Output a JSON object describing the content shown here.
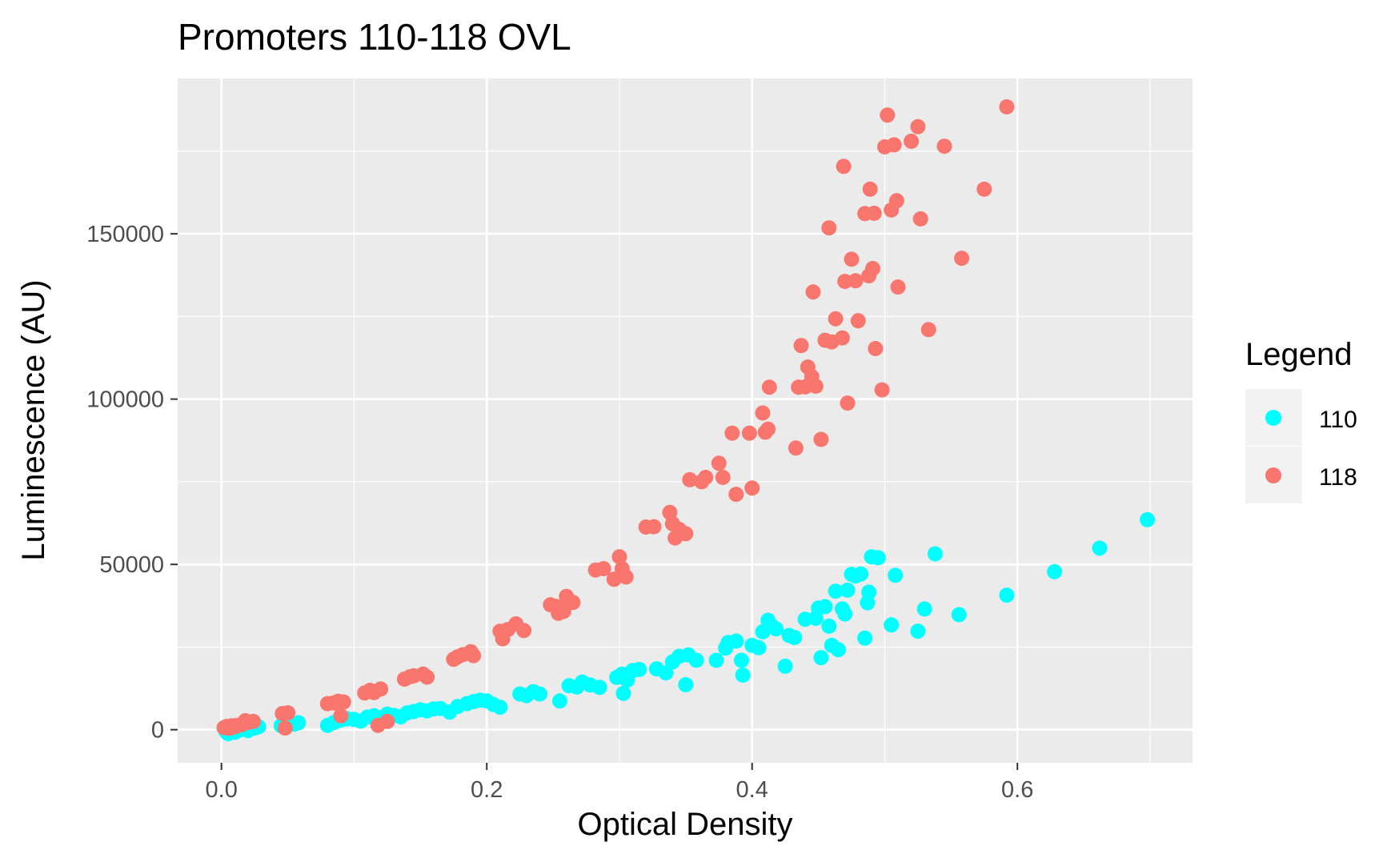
{
  "chart_data": {
    "type": "scatter",
    "title": "Promoters 110-118 OVL",
    "xlabel": "Optical Density",
    "ylabel": "Luminescence (AU)",
    "xlim": [
      -0.033,
      0.732
    ],
    "ylim": [
      -10000,
      197000
    ],
    "x_ticks": [
      0.0,
      0.2,
      0.4,
      0.6
    ],
    "x_tick_labels": [
      "0.0",
      "0.2",
      "0.4",
      "0.6"
    ],
    "y_ticks": [
      0,
      50000,
      100000,
      150000
    ],
    "y_tick_labels": [
      "0",
      "50000",
      "100000",
      "150000"
    ],
    "grid": true,
    "panel_background": "#ebebeb",
    "legend": {
      "title": "Legend",
      "placement": "right"
    },
    "series": [
      {
        "name": "110",
        "color": "#00ffff",
        "points": [
          [
            0.003,
            -200
          ],
          [
            0.004,
            -800
          ],
          [
            0.005,
            -1200
          ],
          [
            0.006,
            -600
          ],
          [
            0.008,
            0
          ],
          [
            0.01,
            -800
          ],
          [
            0.012,
            -400
          ],
          [
            0.018,
            100
          ],
          [
            0.02,
            -300
          ],
          [
            0.025,
            500
          ],
          [
            0.028,
            900
          ],
          [
            0.045,
            1200
          ],
          [
            0.055,
            1700
          ],
          [
            0.058,
            2100
          ],
          [
            0.08,
            1300
          ],
          [
            0.085,
            2200
          ],
          [
            0.09,
            2900
          ],
          [
            0.095,
            3300
          ],
          [
            0.1,
            3100
          ],
          [
            0.105,
            2600
          ],
          [
            0.11,
            3800
          ],
          [
            0.115,
            4200
          ],
          [
            0.12,
            3600
          ],
          [
            0.125,
            4700
          ],
          [
            0.13,
            4300
          ],
          [
            0.135,
            3900
          ],
          [
            0.14,
            5100
          ],
          [
            0.145,
            5500
          ],
          [
            0.15,
            6000
          ],
          [
            0.155,
            5700
          ],
          [
            0.16,
            6300
          ],
          [
            0.165,
            6400
          ],
          [
            0.172,
            5300
          ],
          [
            0.178,
            7000
          ],
          [
            0.185,
            7900
          ],
          [
            0.19,
            8500
          ],
          [
            0.195,
            8900
          ],
          [
            0.2,
            8700
          ],
          [
            0.205,
            7600
          ],
          [
            0.21,
            6800
          ],
          [
            0.225,
            10800
          ],
          [
            0.23,
            10300
          ],
          [
            0.235,
            11500
          ],
          [
            0.24,
            10800
          ],
          [
            0.255,
            8700
          ],
          [
            0.262,
            13300
          ],
          [
            0.268,
            12900
          ],
          [
            0.272,
            14400
          ],
          [
            0.278,
            13500
          ],
          [
            0.285,
            12800
          ],
          [
            0.298,
            15800
          ],
          [
            0.302,
            16800
          ],
          [
            0.303,
            11000
          ],
          [
            0.306,
            15000
          ],
          [
            0.31,
            17900
          ],
          [
            0.315,
            18200
          ],
          [
            0.328,
            18400
          ],
          [
            0.335,
            17200
          ],
          [
            0.34,
            20500
          ],
          [
            0.345,
            22200
          ],
          [
            0.35,
            13600
          ],
          [
            0.352,
            22600
          ],
          [
            0.358,
            21000
          ],
          [
            0.373,
            21000
          ],
          [
            0.38,
            24700
          ],
          [
            0.382,
            26400
          ],
          [
            0.388,
            26800
          ],
          [
            0.392,
            21000
          ],
          [
            0.393,
            16500
          ],
          [
            0.4,
            25500
          ],
          [
            0.405,
            24800
          ],
          [
            0.408,
            29600
          ],
          [
            0.412,
            33100
          ],
          [
            0.415,
            31300
          ],
          [
            0.418,
            30500
          ],
          [
            0.425,
            19200
          ],
          [
            0.428,
            28500
          ],
          [
            0.432,
            27900
          ],
          [
            0.44,
            33400
          ],
          [
            0.448,
            33700
          ],
          [
            0.45,
            36800
          ],
          [
            0.452,
            21800
          ],
          [
            0.455,
            37200
          ],
          [
            0.458,
            31300
          ],
          [
            0.46,
            25500
          ],
          [
            0.463,
            41900
          ],
          [
            0.465,
            24200
          ],
          [
            0.468,
            36500
          ],
          [
            0.47,
            35000
          ],
          [
            0.472,
            42200
          ],
          [
            0.475,
            47000
          ],
          [
            0.478,
            46500
          ],
          [
            0.482,
            47100
          ],
          [
            0.485,
            27700
          ],
          [
            0.487,
            38400
          ],
          [
            0.488,
            41600
          ],
          [
            0.49,
            52300
          ],
          [
            0.495,
            52000
          ],
          [
            0.505,
            31700
          ],
          [
            0.508,
            46700
          ],
          [
            0.525,
            29800
          ],
          [
            0.53,
            36500
          ],
          [
            0.538,
            53200
          ],
          [
            0.556,
            34800
          ],
          [
            0.592,
            40700
          ],
          [
            0.628,
            47800
          ],
          [
            0.662,
            54900
          ],
          [
            0.698,
            63500
          ]
        ]
      },
      {
        "name": "118",
        "color": "#f8766d",
        "points": [
          [
            0.002,
            600
          ],
          [
            0.004,
            1000
          ],
          [
            0.006,
            400
          ],
          [
            0.008,
            1200
          ],
          [
            0.01,
            900
          ],
          [
            0.012,
            1300
          ],
          [
            0.015,
            1500
          ],
          [
            0.018,
            2700
          ],
          [
            0.02,
            2200
          ],
          [
            0.024,
            2500
          ],
          [
            0.046,
            4900
          ],
          [
            0.048,
            500
          ],
          [
            0.05,
            5100
          ],
          [
            0.08,
            7900
          ],
          [
            0.085,
            8100
          ],
          [
            0.088,
            8600
          ],
          [
            0.09,
            4200
          ],
          [
            0.092,
            8400
          ],
          [
            0.108,
            11100
          ],
          [
            0.112,
            11900
          ],
          [
            0.115,
            11200
          ],
          [
            0.118,
            1300
          ],
          [
            0.12,
            12300
          ],
          [
            0.125,
            2500
          ],
          [
            0.138,
            15300
          ],
          [
            0.142,
            16000
          ],
          [
            0.145,
            16300
          ],
          [
            0.152,
            16800
          ],
          [
            0.155,
            15900
          ],
          [
            0.175,
            21300
          ],
          [
            0.178,
            22000
          ],
          [
            0.182,
            22700
          ],
          [
            0.188,
            23600
          ],
          [
            0.19,
            22400
          ],
          [
            0.21,
            29800
          ],
          [
            0.212,
            27500
          ],
          [
            0.216,
            30300
          ],
          [
            0.222,
            32000
          ],
          [
            0.228,
            30000
          ],
          [
            0.248,
            37800
          ],
          [
            0.252,
            37300
          ],
          [
            0.254,
            35200
          ],
          [
            0.256,
            36700
          ],
          [
            0.258,
            35800
          ],
          [
            0.26,
            40300
          ],
          [
            0.265,
            38500
          ],
          [
            0.282,
            48300
          ],
          [
            0.288,
            48700
          ],
          [
            0.296,
            45500
          ],
          [
            0.3,
            52300
          ],
          [
            0.302,
            48700
          ],
          [
            0.305,
            46200
          ],
          [
            0.32,
            61300
          ],
          [
            0.326,
            61400
          ],
          [
            0.338,
            65700
          ],
          [
            0.34,
            62300
          ],
          [
            0.342,
            58000
          ],
          [
            0.345,
            60600
          ],
          [
            0.35,
            59300
          ],
          [
            0.353,
            75600
          ],
          [
            0.362,
            75000
          ],
          [
            0.365,
            76300
          ],
          [
            0.375,
            80600
          ],
          [
            0.378,
            76300
          ],
          [
            0.385,
            89700
          ],
          [
            0.388,
            71200
          ],
          [
            0.398,
            89700
          ],
          [
            0.4,
            73100
          ],
          [
            0.408,
            95800
          ],
          [
            0.41,
            90000
          ],
          [
            0.412,
            90900
          ],
          [
            0.413,
            103600
          ],
          [
            0.433,
            85200
          ],
          [
            0.435,
            103600
          ],
          [
            0.437,
            116200
          ],
          [
            0.44,
            103700
          ],
          [
            0.442,
            109700
          ],
          [
            0.445,
            106800
          ],
          [
            0.446,
            132400
          ],
          [
            0.448,
            103900
          ],
          [
            0.452,
            87800
          ],
          [
            0.455,
            117800
          ],
          [
            0.458,
            151800
          ],
          [
            0.46,
            117300
          ],
          [
            0.463,
            124300
          ],
          [
            0.468,
            118500
          ],
          [
            0.469,
            170400
          ],
          [
            0.47,
            135600
          ],
          [
            0.472,
            98800
          ],
          [
            0.475,
            142300
          ],
          [
            0.478,
            135800
          ],
          [
            0.48,
            123700
          ],
          [
            0.485,
            156100
          ],
          [
            0.488,
            137300
          ],
          [
            0.489,
            163500
          ],
          [
            0.491,
            139500
          ],
          [
            0.492,
            156200
          ],
          [
            0.493,
            115300
          ],
          [
            0.498,
            102800
          ],
          [
            0.5,
            176300
          ],
          [
            0.502,
            185900
          ],
          [
            0.505,
            157200
          ],
          [
            0.507,
            176900
          ],
          [
            0.509,
            160000
          ],
          [
            0.51,
            133900
          ],
          [
            0.52,
            178000
          ],
          [
            0.525,
            182400
          ],
          [
            0.527,
            154500
          ],
          [
            0.533,
            121000
          ],
          [
            0.545,
            176500
          ],
          [
            0.558,
            142600
          ],
          [
            0.575,
            163500
          ],
          [
            0.592,
            188400
          ]
        ]
      }
    ]
  }
}
